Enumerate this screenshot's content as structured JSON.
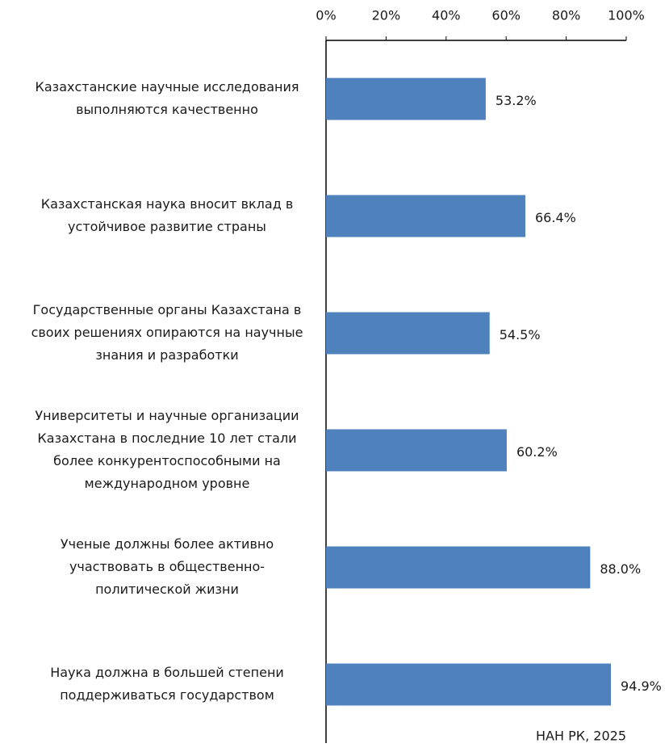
{
  "chart_data": {
    "type": "hbar",
    "categories": [
      [
        "Казахстанские научные исследования",
        "выполняются качественно"
      ],
      [
        "Казахстанская наука вносит вклад в",
        "устойчивое развитие страны"
      ],
      [
        "Государственные органы Казахстана в",
        "своих решениях опираются на научные",
        "знания и разработки"
      ],
      [
        "Университеты и научные организации",
        "Казахстана в последние 10 лет стали",
        "более конкурентоспособными на",
        "международном уровне"
      ],
      [
        "Ученые должны более активно",
        "участвовать в общественно-",
        "политической жизни"
      ],
      [
        "Наука должна в большей степени",
        "поддерживаться государством"
      ]
    ],
    "values": [
      53.2,
      66.4,
      54.5,
      60.2,
      88.0,
      94.9
    ],
    "value_labels": [
      "53.2%",
      "66.4%",
      "54.5%",
      "60.2%",
      "88.0%",
      "94.9%"
    ],
    "color": "#4f81bd",
    "xlim": [
      0,
      100
    ],
    "xticks": [
      {
        "value": 0,
        "label": "0%"
      },
      {
        "value": 20,
        "label": "20%"
      },
      {
        "value": 40,
        "label": "40%"
      },
      {
        "value": 60,
        "label": "60%"
      },
      {
        "value": 80,
        "label": "80%"
      },
      {
        "value": 100,
        "label": "100%"
      }
    ],
    "source": "НАН РК, 2025"
  }
}
